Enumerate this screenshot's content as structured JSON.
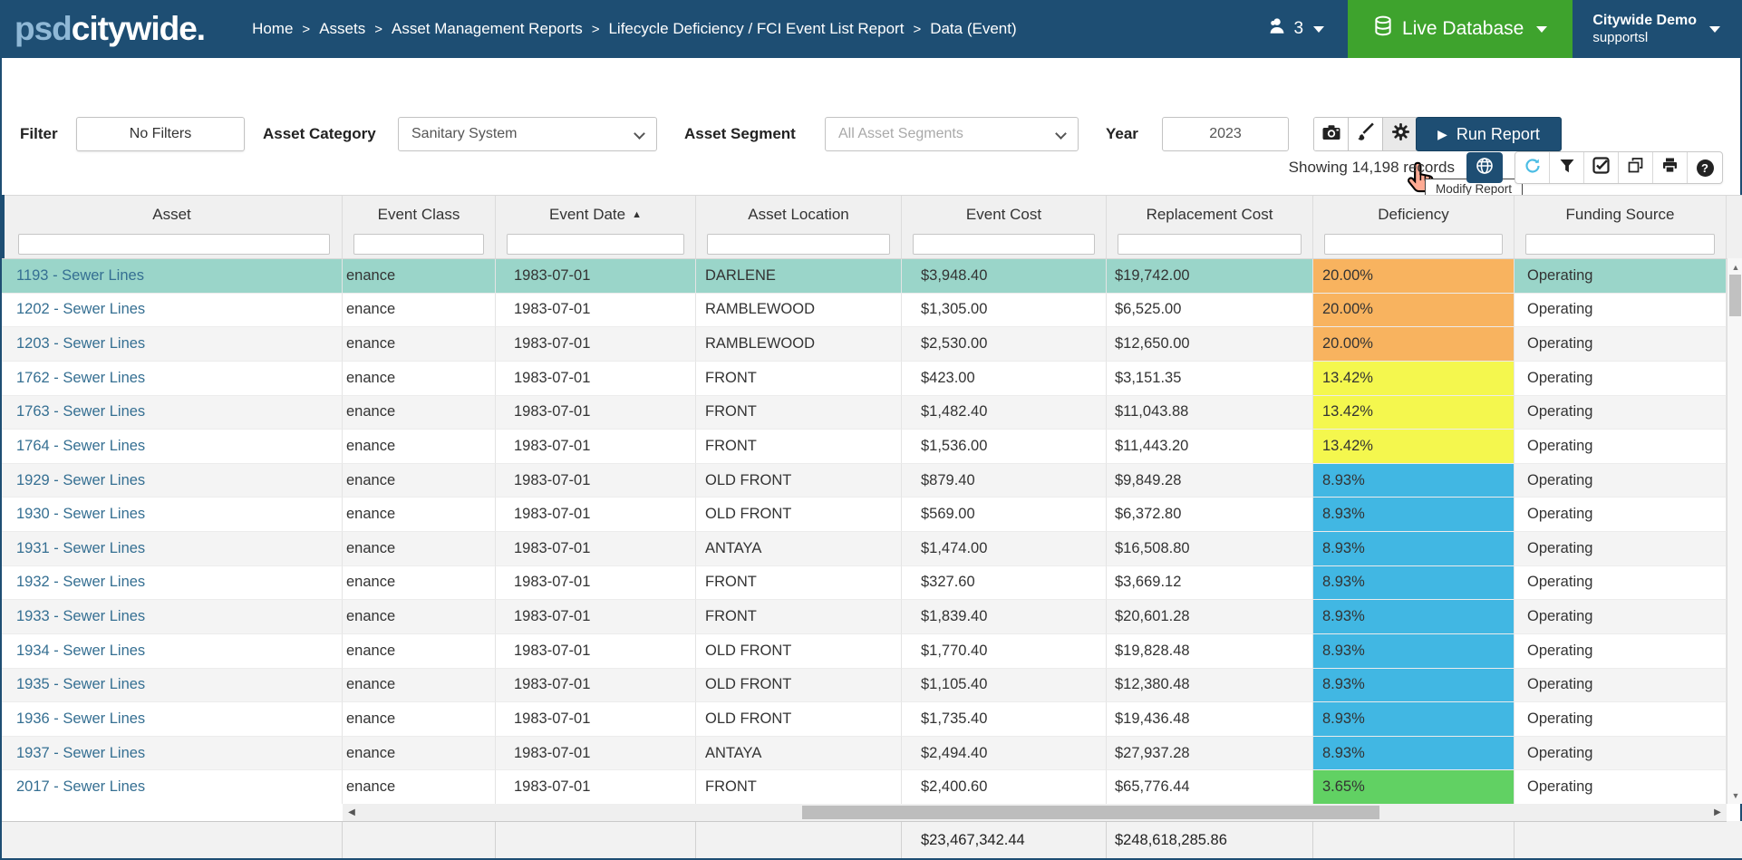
{
  "navbar": {
    "logo_psd": "psd",
    "logo_citywide": "citywide",
    "logo_dot": ".",
    "breadcrumbs": [
      "Home",
      "Assets",
      "Asset Management Reports",
      "Lifecycle Deficiency / FCI Event List Report",
      "Data (Event)"
    ],
    "breadcrumb_separator": ">",
    "user_count": "3",
    "live_database_label": "Live Database",
    "account_name": "Citywide Demo",
    "account_sub": "supportsl"
  },
  "filter_bar": {
    "filter_label": "Filter",
    "no_filters_label": "No Filters",
    "asset_category_label": "Asset Category",
    "asset_category_value": "Sanitary System",
    "asset_segment_label": "Asset Segment",
    "asset_segment_value": "All Asset Segments",
    "year_label": "Year",
    "year_value": "2023",
    "run_report_label": "Run Report",
    "tooltip_text": "Modify Report"
  },
  "records_bar": {
    "showing_text": "Showing 14,198 records"
  },
  "table": {
    "columns": [
      "Asset",
      "Event Class",
      "Event Date",
      "Asset Location",
      "Event Cost",
      "Replacement Cost",
      "Deficiency",
      "Funding Source"
    ],
    "sorted_column": "Event Date",
    "rows": [
      {
        "asset": "1193 - Sewer Lines",
        "event_class": "enance",
        "event_date": "1983-07-01",
        "location": "DARLENE",
        "event_cost": "$3,948.40",
        "replacement_cost": "$19,742.00",
        "deficiency": "20.00%",
        "level": "high",
        "funding": "Operating",
        "selected": true
      },
      {
        "asset": "1202 - Sewer Lines",
        "event_class": "enance",
        "event_date": "1983-07-01",
        "location": "RAMBLEWOOD",
        "event_cost": "$1,305.00",
        "replacement_cost": "$6,525.00",
        "deficiency": "20.00%",
        "level": "high",
        "funding": "Operating",
        "selected": false
      },
      {
        "asset": "1203 - Sewer Lines",
        "event_class": "enance",
        "event_date": "1983-07-01",
        "location": "RAMBLEWOOD",
        "event_cost": "$2,530.00",
        "replacement_cost": "$12,650.00",
        "deficiency": "20.00%",
        "level": "high",
        "funding": "Operating",
        "selected": false
      },
      {
        "asset": "1762 - Sewer Lines",
        "event_class": "enance",
        "event_date": "1983-07-01",
        "location": "FRONT",
        "event_cost": "$423.00",
        "replacement_cost": "$3,151.35",
        "deficiency": "13.42%",
        "level": "elevated",
        "funding": "Operating",
        "selected": false
      },
      {
        "asset": "1763 - Sewer Lines",
        "event_class": "enance",
        "event_date": "1983-07-01",
        "location": "FRONT",
        "event_cost": "$1,482.40",
        "replacement_cost": "$11,043.88",
        "deficiency": "13.42%",
        "level": "elevated",
        "funding": "Operating",
        "selected": false
      },
      {
        "asset": "1764 - Sewer Lines",
        "event_class": "enance",
        "event_date": "1983-07-01",
        "location": "FRONT",
        "event_cost": "$1,536.00",
        "replacement_cost": "$11,443.20",
        "deficiency": "13.42%",
        "level": "elevated",
        "funding": "Operating",
        "selected": false
      },
      {
        "asset": "1929 - Sewer Lines",
        "event_class": "enance",
        "event_date": "1983-07-01",
        "location": "OLD FRONT",
        "event_cost": "$879.40",
        "replacement_cost": "$9,849.28",
        "deficiency": "8.93%",
        "level": "moderate",
        "funding": "Operating",
        "selected": false
      },
      {
        "asset": "1930 - Sewer Lines",
        "event_class": "enance",
        "event_date": "1983-07-01",
        "location": "OLD FRONT",
        "event_cost": "$569.00",
        "replacement_cost": "$6,372.80",
        "deficiency": "8.93%",
        "level": "moderate",
        "funding": "Operating",
        "selected": false
      },
      {
        "asset": "1931 - Sewer Lines",
        "event_class": "enance",
        "event_date": "1983-07-01",
        "location": "ANTAYA",
        "event_cost": "$1,474.00",
        "replacement_cost": "$16,508.80",
        "deficiency": "8.93%",
        "level": "moderate",
        "funding": "Operating",
        "selected": false
      },
      {
        "asset": "1932 - Sewer Lines",
        "event_class": "enance",
        "event_date": "1983-07-01",
        "location": "FRONT",
        "event_cost": "$327.60",
        "replacement_cost": "$3,669.12",
        "deficiency": "8.93%",
        "level": "moderate",
        "funding": "Operating",
        "selected": false
      },
      {
        "asset": "1933 - Sewer Lines",
        "event_class": "enance",
        "event_date": "1983-07-01",
        "location": "FRONT",
        "event_cost": "$1,839.40",
        "replacement_cost": "$20,601.28",
        "deficiency": "8.93%",
        "level": "moderate",
        "funding": "Operating",
        "selected": false
      },
      {
        "asset": "1934 - Sewer Lines",
        "event_class": "enance",
        "event_date": "1983-07-01",
        "location": "OLD FRONT",
        "event_cost": "$1,770.40",
        "replacement_cost": "$19,828.48",
        "deficiency": "8.93%",
        "level": "moderate",
        "funding": "Operating",
        "selected": false
      },
      {
        "asset": "1935 - Sewer Lines",
        "event_class": "enance",
        "event_date": "1983-07-01",
        "location": "OLD FRONT",
        "event_cost": "$1,105.40",
        "replacement_cost": "$12,380.48",
        "deficiency": "8.93%",
        "level": "moderate",
        "funding": "Operating",
        "selected": false
      },
      {
        "asset": "1936 - Sewer Lines",
        "event_class": "enance",
        "event_date": "1983-07-01",
        "location": "OLD FRONT",
        "event_cost": "$1,735.40",
        "replacement_cost": "$19,436.48",
        "deficiency": "8.93%",
        "level": "moderate",
        "funding": "Operating",
        "selected": false
      },
      {
        "asset": "1937 - Sewer Lines",
        "event_class": "enance",
        "event_date": "1983-07-01",
        "location": "ANTAYA",
        "event_cost": "$2,494.40",
        "replacement_cost": "$27,937.28",
        "deficiency": "8.93%",
        "level": "moderate",
        "funding": "Operating",
        "selected": false
      },
      {
        "asset": "2017 - Sewer Lines",
        "event_class": "enance",
        "event_date": "1983-07-01",
        "location": "FRONT",
        "event_cost": "$2,400.60",
        "replacement_cost": "$65,776.44",
        "deficiency": "3.65%",
        "level": "low",
        "funding": "Operating",
        "selected": false
      }
    ],
    "totals": {
      "event_cost": "$23,467,342.44",
      "replacement_cost": "$248,618,285.86"
    }
  },
  "colors": {
    "navbar": "#1e4e73",
    "green_button": "#3ea32d",
    "selected_row": "#9ad5c9",
    "link_blue": "#356f92",
    "refresh_icon": "#4cbde4",
    "deficiency_levels": {
      "high": "#f8b35f",
      "elevated": "#f4f74e",
      "moderate": "#41b7e3",
      "low": "#61d163"
    }
  }
}
